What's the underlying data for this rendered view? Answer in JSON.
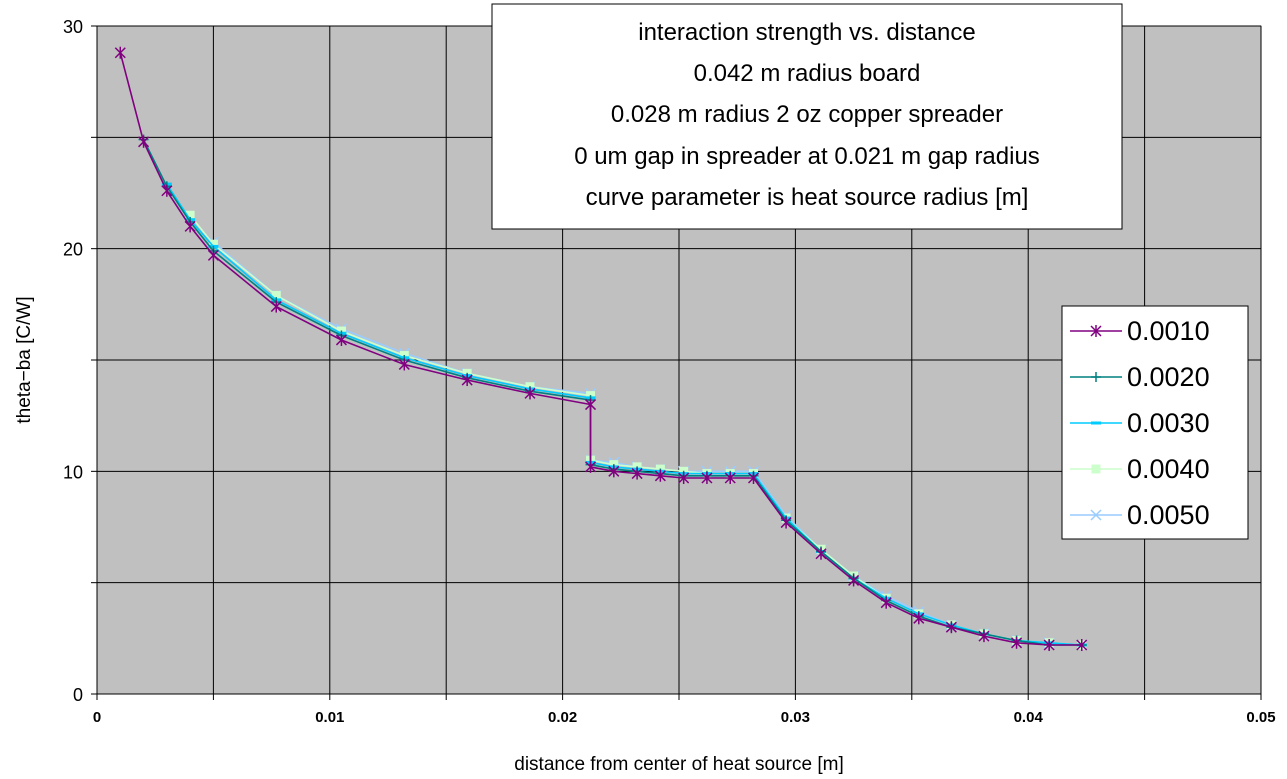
{
  "chart_data": {
    "type": "line",
    "title_lines": [
      "interaction strength vs. distance",
      "0.042 m radius board",
      "0.028 m radius 2 oz copper spreader",
      "0 um gap in spreader at 0.021 m gap radius",
      "curve parameter is heat source radius [m]"
    ],
    "xlabel": "distance from center of heat source [m]",
    "ylabel": "theta−ba [C/W]",
    "xlim": [
      0,
      0.05
    ],
    "ylim": [
      0,
      30
    ],
    "x_ticks": [
      0,
      0.01,
      0.02,
      0.03,
      0.04,
      0.05
    ],
    "x_tick_labels": [
      "0",
      "0.01",
      "0.02",
      "0.03",
      "0.04",
      "0.05"
    ],
    "y_ticks": [
      0,
      10,
      20,
      30
    ],
    "y_tick_labels": [
      "0",
      "10",
      "20",
      "30"
    ],
    "grid_x": [
      0,
      0.005,
      0.01,
      0.015,
      0.02,
      0.025,
      0.03,
      0.035,
      0.04,
      0.045,
      0.05
    ],
    "grid_y": [
      0,
      5,
      10,
      15,
      20,
      25,
      30
    ],
    "plot_background": "#c0c0c0",
    "grid": true,
    "legend_position": "right",
    "series": [
      {
        "name": "0.0010",
        "color": "#800080",
        "marker": "asterisk",
        "x": [
          0.001,
          0.002,
          0.003,
          0.004,
          0.005,
          0.0077,
          0.0105,
          0.0132,
          0.0159,
          0.0186,
          0.0212,
          0.0212,
          0.0222,
          0.0232,
          0.0242,
          0.0252,
          0.0262,
          0.0272,
          0.0282,
          0.0296,
          0.0311,
          0.0325,
          0.0339,
          0.0353,
          0.0367,
          0.0381,
          0.0395,
          0.0409,
          0.0423
        ],
        "y": [
          28.8,
          24.8,
          22.6,
          21.0,
          19.7,
          17.4,
          15.9,
          14.8,
          14.1,
          13.5,
          13.0,
          10.2,
          10.0,
          9.9,
          9.8,
          9.7,
          9.7,
          9.7,
          9.7,
          7.7,
          6.3,
          5.1,
          4.1,
          3.4,
          3.0,
          2.6,
          2.3,
          2.2,
          2.2
        ]
      },
      {
        "name": "0.0020",
        "color": "#008080",
        "marker": "plus",
        "x": [
          0.002,
          0.003,
          0.004,
          0.005,
          0.0077,
          0.0105,
          0.0132,
          0.0159,
          0.0186,
          0.0212,
          0.0212,
          0.0222,
          0.0232,
          0.0242,
          0.0252,
          0.0262,
          0.0272,
          0.0282,
          0.0296,
          0.0311,
          0.0325,
          0.0339,
          0.0353,
          0.0367,
          0.0381,
          0.0395,
          0.0409,
          0.0423
        ],
        "y": [
          24.9,
          22.8,
          21.2,
          19.9,
          17.6,
          16.1,
          15.0,
          14.2,
          13.6,
          13.2,
          10.3,
          10.1,
          10.0,
          9.9,
          9.8,
          9.8,
          9.8,
          9.8,
          7.8,
          6.4,
          5.2,
          4.2,
          3.5,
          3.0,
          2.7,
          2.4,
          2.2,
          2.2
        ]
      },
      {
        "name": "0.0030",
        "color": "#00ccff",
        "marker": "dash",
        "x": [
          0.003,
          0.004,
          0.005,
          0.0077,
          0.0105,
          0.0132,
          0.0159,
          0.0186,
          0.0212,
          0.0212,
          0.0222,
          0.0232,
          0.0242,
          0.0252,
          0.0262,
          0.0272,
          0.0282,
          0.0296,
          0.0311,
          0.0325,
          0.0339,
          0.0353,
          0.0367,
          0.0381,
          0.0395,
          0.0409,
          0.0423
        ],
        "y": [
          22.9,
          21.3,
          20.1,
          17.7,
          16.2,
          15.1,
          14.3,
          13.7,
          13.3,
          10.4,
          10.2,
          10.1,
          10.0,
          9.9,
          9.9,
          9.9,
          9.9,
          7.9,
          6.4,
          5.2,
          4.3,
          3.6,
          3.1,
          2.7,
          2.4,
          2.3,
          2.2
        ]
      },
      {
        "name": "0.0040",
        "color": "#ccffcc",
        "marker": "square",
        "x": [
          0.004,
          0.005,
          0.0077,
          0.0105,
          0.0132,
          0.0159,
          0.0186,
          0.0212,
          0.0212,
          0.0222,
          0.0232,
          0.0242,
          0.0252,
          0.0262,
          0.0272,
          0.0282,
          0.0296,
          0.0311,
          0.0325,
          0.0339,
          0.0353,
          0.0367,
          0.0381,
          0.0395,
          0.0409,
          0.0423
        ],
        "y": [
          21.5,
          20.2,
          17.9,
          16.3,
          15.2,
          14.4,
          13.8,
          13.4,
          10.5,
          10.3,
          10.2,
          10.1,
          10.0,
          9.9,
          9.9,
          9.9,
          7.9,
          6.5,
          5.3,
          4.3,
          3.6,
          3.1,
          2.7,
          2.4,
          2.3,
          2.2
        ]
      },
      {
        "name": "0.0050",
        "color": "#99ccff",
        "marker": "x",
        "x": [
          0.005,
          0.0077,
          0.0105,
          0.0132,
          0.0159,
          0.0186,
          0.0212,
          0.0212,
          0.0222,
          0.0232,
          0.0242,
          0.0252,
          0.0262,
          0.0272,
          0.0282,
          0.0296,
          0.0311,
          0.0325,
          0.0339,
          0.0353,
          0.0367,
          0.0381,
          0.0395,
          0.0409,
          0.0423
        ],
        "y": [
          20.3,
          17.9,
          16.4,
          15.3,
          14.4,
          13.8,
          13.5,
          10.5,
          10.4,
          10.2,
          10.1,
          10.0,
          10.0,
          10.0,
          10.0,
          8.0,
          6.5,
          5.3,
          4.4,
          3.7,
          3.1,
          2.7,
          2.4,
          2.3,
          2.2
        ]
      }
    ]
  }
}
